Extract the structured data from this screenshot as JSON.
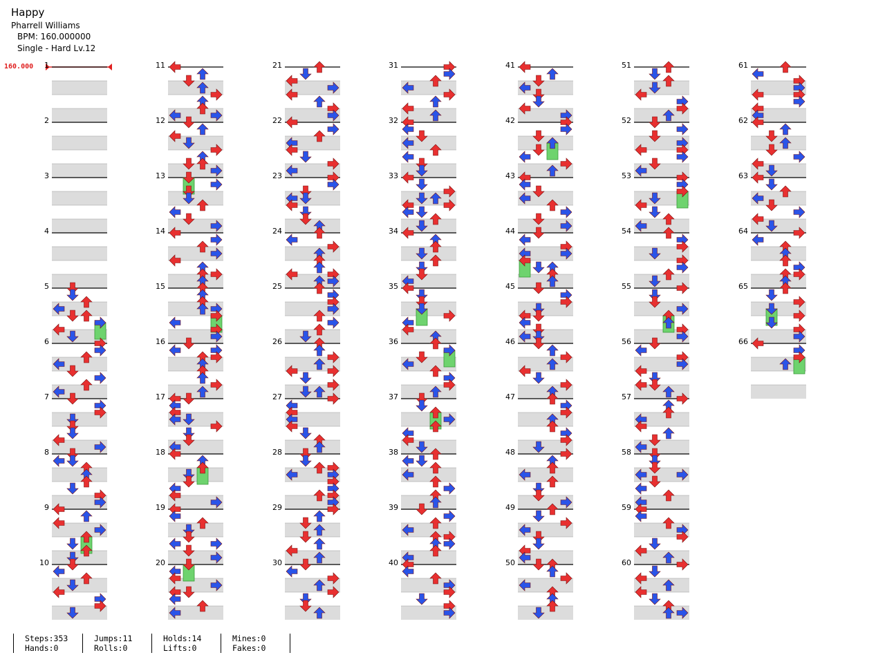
{
  "song": {
    "title": "Happy",
    "artist": "Pharrell Williams",
    "bpm_label": "BPM: 160.000000",
    "difficulty_label": "Single - Hard  Lv.12"
  },
  "bpm_marker": "160.000",
  "total_measures": 66,
  "measures_per_column": 10,
  "colors": {
    "quarter_arrow": "#e83030",
    "eighth_arrow": "#2a54e8",
    "hold_body": "#6ed36e",
    "row_shade": "#dcdcdc",
    "bpm_line": "#e02020"
  },
  "arrow_legend": [
    "left-arrow-icon",
    "down-arrow-icon",
    "up-arrow-icon",
    "right-arrow-icon"
  ],
  "stats": {
    "steps": "Steps:353",
    "hands": "Hands:0",
    "jumps": "Jumps:11",
    "rolls": "Rolls:0",
    "holds": "Holds:14",
    "lifts": "Lifts:0",
    "mines": "Mines:0",
    "fakes": "Fakes:0"
  }
}
